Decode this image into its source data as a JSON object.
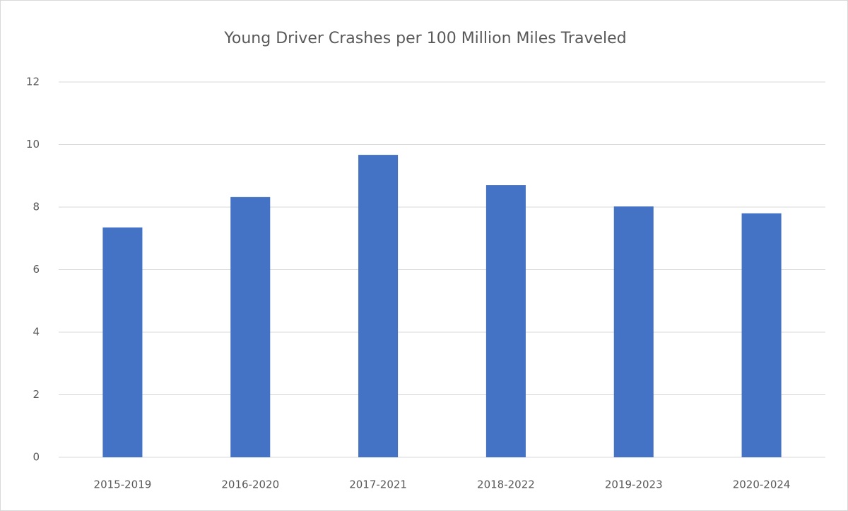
{
  "chart_data": {
    "type": "bar",
    "title": "Young Driver Crashes per 100 Million Miles Traveled",
    "categories": [
      "2015-2019",
      "2016-2020",
      "2017-2021",
      "2018-2022",
      "2019-2023",
      "2020-2024"
    ],
    "values": [
      7.35,
      8.32,
      9.67,
      8.7,
      8.02,
      7.8
    ],
    "color": "#4472c4",
    "ylim": [
      0,
      12
    ],
    "yticks": [
      0,
      2,
      4,
      6,
      8,
      10,
      12
    ],
    "grid": true
  }
}
